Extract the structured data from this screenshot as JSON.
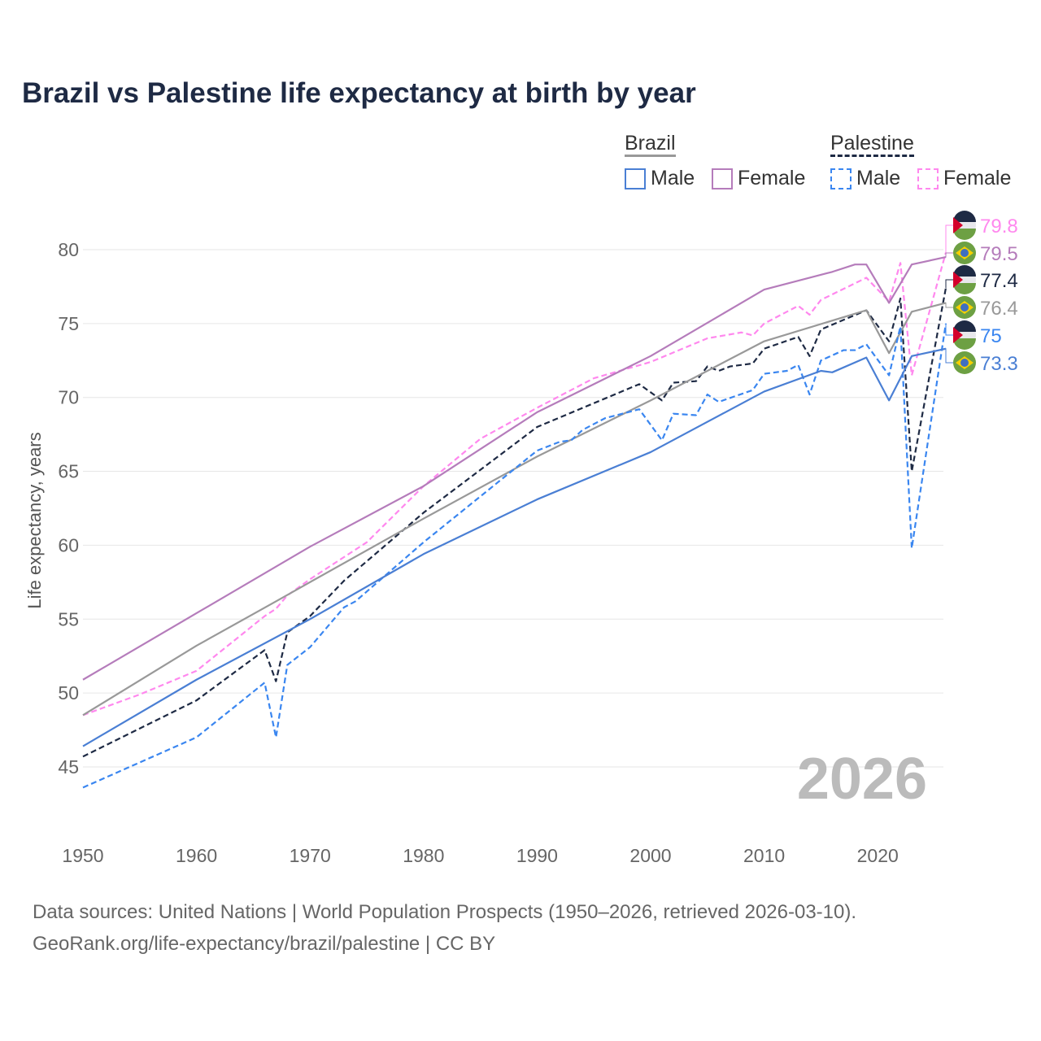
{
  "chart_data": {
    "type": "line",
    "title": "Brazil vs Palestine life expectancy at birth by year",
    "xlabel": "",
    "ylabel": "Life expectancy, years",
    "xlim": [
      1950,
      2026
    ],
    "ylim": [
      40.5,
      82.5
    ],
    "yticks": [
      45,
      50,
      55,
      60,
      65,
      70,
      75,
      80
    ],
    "xticks": [
      1950,
      1960,
      1970,
      1980,
      1990,
      2000,
      2010,
      2020
    ],
    "grid": true,
    "year_label": "2026",
    "legend": {
      "groups": [
        {
          "name": "Brazil",
          "items": [
            "Male",
            "Female"
          ]
        },
        {
          "name": "Palestine",
          "items": [
            "Male",
            "Female"
          ]
        }
      ],
      "placement": "top-right"
    },
    "series": [
      {
        "name": "Palestine Female",
        "label": "79.8",
        "country": "Palestine",
        "color": "#ff88ee",
        "dash": true,
        "points": [
          [
            1950,
            48.5
          ],
          [
            1955,
            49.9
          ],
          [
            1960,
            51.5
          ],
          [
            1966,
            55.2
          ],
          [
            1967,
            55.7
          ],
          [
            1968,
            56.6
          ],
          [
            1970,
            57.7
          ],
          [
            1975,
            60.2
          ],
          [
            1980,
            64.0
          ],
          [
            1985,
            67.2
          ],
          [
            1990,
            69.3
          ],
          [
            1995,
            71.3
          ],
          [
            2000,
            72.4
          ],
          [
            2005,
            74.0
          ],
          [
            2008,
            74.4
          ],
          [
            2009,
            74.2
          ],
          [
            2010,
            75.0
          ],
          [
            2013,
            76.2
          ],
          [
            2014,
            75.6
          ],
          [
            2015,
            76.6
          ],
          [
            2019,
            78.1
          ],
          [
            2021,
            76.5
          ],
          [
            2022,
            79.1
          ],
          [
            2023,
            71.5
          ],
          [
            2026,
            79.8
          ]
        ]
      },
      {
        "name": "Brazil Female",
        "label": "79.5",
        "country": "Brazil",
        "color": "#b57cbb",
        "dash": false,
        "points": [
          [
            1950,
            50.9
          ],
          [
            1960,
            55.4
          ],
          [
            1970,
            59.9
          ],
          [
            1980,
            64.0
          ],
          [
            1990,
            69.0
          ],
          [
            2000,
            72.8
          ],
          [
            2010,
            77.3
          ],
          [
            2016,
            78.5
          ],
          [
            2018,
            79.0
          ],
          [
            2019,
            79.0
          ],
          [
            2021,
            76.4
          ],
          [
            2023,
            79.0
          ],
          [
            2026,
            79.5
          ]
        ]
      },
      {
        "name": "Palestine",
        "label": "77.4",
        "country": "Palestine",
        "color": "#1e2a44",
        "dash": true,
        "points": [
          [
            1950,
            45.7
          ],
          [
            1960,
            49.5
          ],
          [
            1966,
            52.9
          ],
          [
            1967,
            50.8
          ],
          [
            1968,
            54.1
          ],
          [
            1970,
            55.2
          ],
          [
            1973,
            57.6
          ],
          [
            1980,
            62.2
          ],
          [
            1990,
            68.0
          ],
          [
            1999,
            70.9
          ],
          [
            2001,
            69.8
          ],
          [
            2002,
            71.0
          ],
          [
            2004,
            71.1
          ],
          [
            2005,
            72.1
          ],
          [
            2006,
            71.8
          ],
          [
            2007,
            72.1
          ],
          [
            2009,
            72.3
          ],
          [
            2010,
            73.3
          ],
          [
            2013,
            74.1
          ],
          [
            2014,
            72.8
          ],
          [
            2015,
            74.6
          ],
          [
            2019,
            75.9
          ],
          [
            2021,
            73.8
          ],
          [
            2022,
            76.7
          ],
          [
            2023,
            65.0
          ],
          [
            2026,
            77.4
          ]
        ]
      },
      {
        "name": "Brazil",
        "label": "76.4",
        "country": "Brazil",
        "color": "#999999",
        "dash": false,
        "points": [
          [
            1950,
            48.5
          ],
          [
            1960,
            53.2
          ],
          [
            1967,
            56.2
          ],
          [
            1970,
            57.5
          ],
          [
            1980,
            61.8
          ],
          [
            1990,
            66.0
          ],
          [
            2000,
            69.8
          ],
          [
            2010,
            73.8
          ],
          [
            2019,
            75.9
          ],
          [
            2021,
            73.0
          ],
          [
            2023,
            75.8
          ],
          [
            2026,
            76.4
          ]
        ]
      },
      {
        "name": "Palestine Male",
        "label": "75",
        "country": "Palestine",
        "color": "#3a86f0",
        "dash": true,
        "points": [
          [
            1950,
            43.6
          ],
          [
            1960,
            47.0
          ],
          [
            1966,
            50.7
          ],
          [
            1967,
            47.0
          ],
          [
            1968,
            51.9
          ],
          [
            1970,
            53.1
          ],
          [
            1973,
            55.8
          ],
          [
            1974,
            56.2
          ],
          [
            1980,
            60.2
          ],
          [
            1990,
            66.4
          ],
          [
            1992,
            67.0
          ],
          [
            1993,
            67.1
          ],
          [
            1994,
            67.8
          ],
          [
            1996,
            68.6
          ],
          [
            1999,
            69.2
          ],
          [
            2001,
            67.1
          ],
          [
            2002,
            68.9
          ],
          [
            2004,
            68.8
          ],
          [
            2005,
            70.2
          ],
          [
            2006,
            69.7
          ],
          [
            2009,
            70.5
          ],
          [
            2010,
            71.6
          ],
          [
            2012,
            71.8
          ],
          [
            2013,
            72.2
          ],
          [
            2014,
            70.2
          ],
          [
            2015,
            72.5
          ],
          [
            2017,
            73.2
          ],
          [
            2018,
            73.2
          ],
          [
            2019,
            73.6
          ],
          [
            2021,
            71.5
          ],
          [
            2022,
            74.8
          ],
          [
            2023,
            59.8
          ],
          [
            2026,
            75.0
          ]
        ]
      },
      {
        "name": "Brazil Male",
        "label": "73.3",
        "country": "Brazil",
        "color": "#4a7fd4",
        "dash": false,
        "points": [
          [
            1950,
            46.4
          ],
          [
            1960,
            50.9
          ],
          [
            1970,
            55.0
          ],
          [
            1980,
            59.4
          ],
          [
            1990,
            63.1
          ],
          [
            2000,
            66.3
          ],
          [
            2010,
            70.4
          ],
          [
            2015,
            71.8
          ],
          [
            2016,
            71.7
          ],
          [
            2019,
            72.7
          ],
          [
            2021,
            69.8
          ],
          [
            2023,
            72.8
          ],
          [
            2026,
            73.3
          ]
        ]
      }
    ]
  },
  "sources": {
    "line1": "Data sources: United Nations | World Population Prospects (1950–2026, retrieved 2026-03-10).",
    "line2": "GeoRank.org/life-expectancy/brazil/palestine | CC BY"
  }
}
